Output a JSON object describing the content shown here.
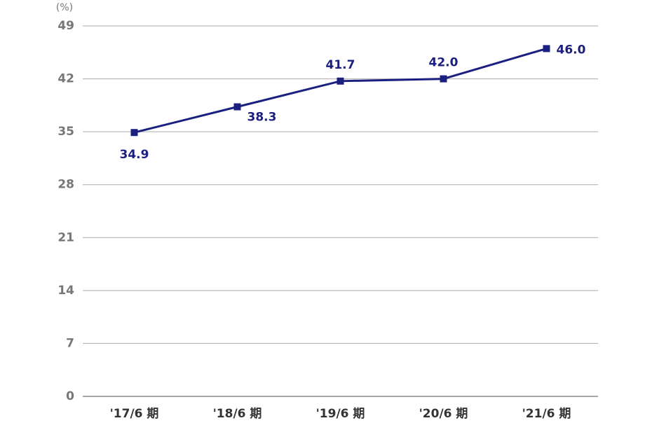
{
  "chart_data": {
    "type": "line",
    "y_label": "(%)",
    "categories": [
      "'17/6 期",
      "'18/6 期",
      "'19/6 期",
      "'20/6 期",
      "'21/6 期"
    ],
    "series": [
      {
        "color": "#1a1f80",
        "values": [
          34.9,
          38.3,
          41.7,
          42.0,
          46.0
        ],
        "value_labels": [
          "34.9",
          "38.3",
          "41.7",
          "42.0",
          "46.0"
        ]
      }
    ],
    "ylim": [
      0,
      49
    ],
    "yticks": [
      0,
      7,
      14,
      21,
      28,
      35,
      42,
      49
    ],
    "grid": true
  }
}
